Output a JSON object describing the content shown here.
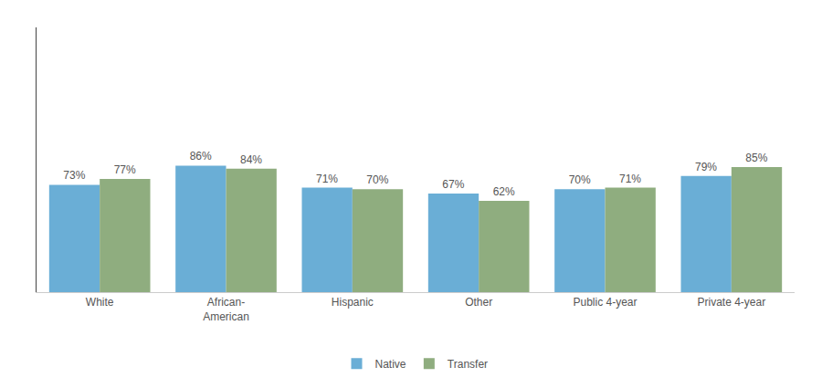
{
  "chart_data": {
    "type": "bar",
    "categories": [
      "White",
      "African-\nAmerican",
      "Hispanic",
      "Other",
      "Public 4-year",
      "Private 4-year"
    ],
    "series": [
      {
        "name": "Native",
        "color": "#6aaed6",
        "values": [
          73,
          86,
          71,
          67,
          70,
          79
        ],
        "value_labels": [
          "73%",
          "86%",
          "71%",
          "67%",
          "70%",
          "79%"
        ]
      },
      {
        "name": "Transfer",
        "color": "#8fad7f",
        "values": [
          77,
          84,
          70,
          62,
          71,
          85
        ],
        "value_labels": [
          "77%",
          "84%",
          "70%",
          "62%",
          "71%",
          "85%"
        ]
      }
    ],
    "ylim": [
      0,
      180
    ],
    "grid": false,
    "legend": "bottom",
    "data_labels": true,
    "tick_labels": "x"
  }
}
